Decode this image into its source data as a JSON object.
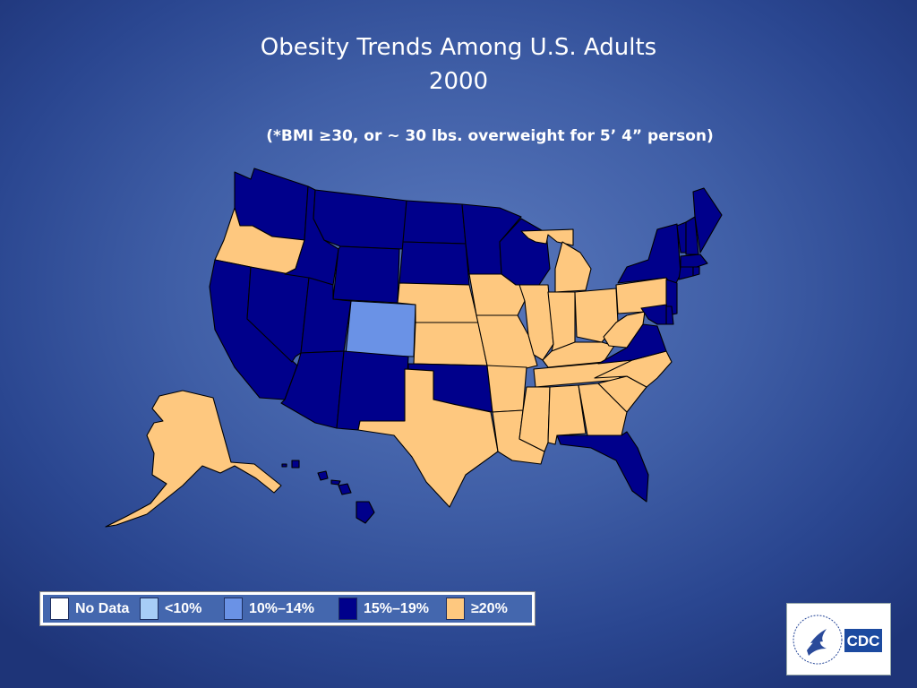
{
  "title_line1": "Obesity Trends Among U.S. Adults",
  "title_line2": "2000",
  "subtitle": "(*BMI ≥30, or ~ 30 lbs. overweight for 5’ 4” person)",
  "colors": {
    "no_data": "#ffffff",
    "lt10": "#a7cdf6",
    "10_14": "#6a92e6",
    "15_19": "#00008b",
    "ge20": "#fec87f"
  },
  "legend": [
    {
      "key": "no_data",
      "label": "No Data"
    },
    {
      "key": "lt10",
      "label": "<10%"
    },
    {
      "key": "10_14",
      "label": "10%–14%"
    },
    {
      "key": "15_19",
      "label": "15%–19%"
    },
    {
      "key": "ge20",
      "label": "≥20%"
    }
  ],
  "states": {
    "WA": "15_19",
    "OR": "ge20",
    "CA": "15_19",
    "NV": "15_19",
    "ID": "15_19",
    "MT": "15_19",
    "WY": "15_19",
    "UT": "15_19",
    "AZ": "15_19",
    "CO": "10_14",
    "NM": "15_19",
    "ND": "15_19",
    "SD": "15_19",
    "NE": "ge20",
    "KS": "ge20",
    "OK": "15_19",
    "TX": "ge20",
    "MN": "15_19",
    "IA": "ge20",
    "MO": "ge20",
    "AR": "ge20",
    "LA": "ge20",
    "WI": "15_19",
    "IL": "ge20",
    "MI": "ge20",
    "IN": "ge20",
    "OH": "ge20",
    "KY": "ge20",
    "TN": "ge20",
    "MS": "ge20",
    "AL": "ge20",
    "GA": "ge20",
    "FL": "15_19",
    "SC": "ge20",
    "NC": "ge20",
    "VA": "15_19",
    "WV": "ge20",
    "PA": "ge20",
    "NY": "15_19",
    "VT": "15_19",
    "NH": "15_19",
    "ME": "15_19",
    "MA": "15_19",
    "RI": "15_19",
    "CT": "15_19",
    "NJ": "15_19",
    "DE": "15_19",
    "MD": "15_19",
    "AK": "ge20",
    "HI": "15_19"
  },
  "logo": {
    "text": "CDC"
  }
}
